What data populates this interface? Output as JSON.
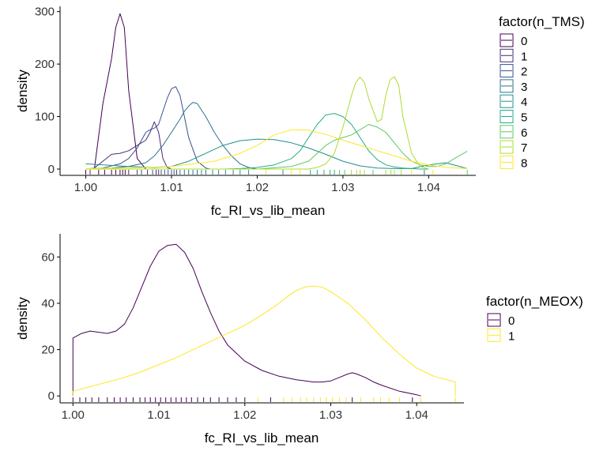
{
  "chart_data": [
    {
      "type": "density",
      "title": "",
      "xlabel": "fc_RI_vs_lib_mean",
      "ylabel": "density",
      "xlim": [
        0.997,
        1.0455
      ],
      "ylim": [
        -12,
        310
      ],
      "xticks": [
        "1.00",
        "1.01",
        "1.02",
        "1.03",
        "1.04"
      ],
      "xtick_values": [
        1.0,
        1.01,
        1.02,
        1.03,
        1.04
      ],
      "yticks": [
        "0",
        "100",
        "200",
        "300"
      ],
      "ytick_values": [
        0,
        100,
        200,
        300
      ],
      "grid": false,
      "legend": {
        "title": "factor(n_TMS)",
        "position": "right"
      },
      "rug": true,
      "series": [
        {
          "name": "0",
          "color": "#440154",
          "x": [
            1.0,
            1.001,
            1.002,
            1.003,
            1.0035,
            1.004,
            1.0045,
            1.005,
            1.006,
            1.007,
            1.0075,
            1.008,
            1.0085,
            1.009,
            1.0095,
            1.01,
            1.0105
          ],
          "y": [
            0,
            0,
            125,
            210,
            270,
            296,
            270,
            150,
            20,
            0,
            0,
            0,
            0,
            0,
            0,
            0,
            0
          ]
        },
        {
          "name": "1",
          "color": "#472D7B",
          "x": [
            1.0,
            1.001,
            1.002,
            1.003,
            1.004,
            1.005,
            1.006,
            1.007,
            1.0075,
            1.008,
            1.0085,
            1.009,
            1.0095,
            1.01,
            1.0105
          ],
          "y": [
            0,
            2,
            15,
            28,
            30,
            35,
            45,
            55,
            70,
            90,
            70,
            20,
            3,
            0,
            0
          ]
        },
        {
          "name": "2",
          "color": "#3B528B",
          "x": [
            1.0,
            1.002,
            1.004,
            1.005,
            1.006,
            1.007,
            1.0075,
            1.008,
            1.0085,
            1.009,
            1.0095,
            1.01,
            1.0105,
            1.011,
            1.0115,
            1.012,
            1.013,
            1.014,
            1.0145
          ],
          "y": [
            0,
            2,
            10,
            20,
            40,
            70,
            75,
            78,
            85,
            110,
            135,
            153,
            157,
            140,
            100,
            60,
            15,
            2,
            0
          ]
        },
        {
          "name": "3",
          "color": "#2C728E",
          "x": [
            1.0,
            1.003,
            1.005,
            1.007,
            1.008,
            1.009,
            1.01,
            1.011,
            1.0115,
            1.012,
            1.0125,
            1.013,
            1.014,
            1.015,
            1.016,
            1.017,
            1.018,
            1.019,
            1.02
          ],
          "y": [
            0,
            2,
            5,
            12,
            25,
            45,
            70,
            95,
            110,
            120,
            127,
            125,
            100,
            70,
            45,
            25,
            10,
            3,
            0
          ]
        },
        {
          "name": "4",
          "color": "#21908C",
          "x": [
            1.0,
            1.005,
            1.008,
            1.01,
            1.012,
            1.014,
            1.016,
            1.018,
            1.02,
            1.022,
            1.024,
            1.026,
            1.028,
            1.03,
            1.032,
            1.034,
            1.036,
            1.038,
            1.04,
            1.042,
            1.0445
          ],
          "y": [
            10,
            5,
            3,
            5,
            15,
            30,
            45,
            54,
            57,
            56,
            50,
            40,
            28,
            15,
            6,
            2,
            1,
            1,
            8,
            12,
            1
          ]
        },
        {
          "name": "5",
          "color": "#27AD81",
          "x": [
            1.0,
            1.01,
            1.016,
            1.018,
            1.02,
            1.022,
            1.024,
            1.025,
            1.026,
            1.027,
            1.028,
            1.029,
            1.03,
            1.031,
            1.032,
            1.033,
            1.034,
            1.035,
            1.036,
            1.037,
            1.038,
            1.039,
            1.04
          ],
          "y": [
            0,
            0,
            0,
            1,
            3,
            8,
            20,
            35,
            60,
            85,
            103,
            106,
            100,
            85,
            60,
            35,
            18,
            8,
            4,
            2,
            1,
            0,
            0
          ]
        },
        {
          "name": "6",
          "color": "#5DC863",
          "x": [
            1.0,
            1.02,
            1.024,
            1.026,
            1.027,
            1.028,
            1.029,
            1.03,
            1.031,
            1.032,
            1.033,
            1.034,
            1.035,
            1.036,
            1.037,
            1.038,
            1.039,
            1.04,
            1.041,
            1.042,
            1.043,
            1.0445
          ],
          "y": [
            0,
            0,
            5,
            15,
            30,
            45,
            55,
            60,
            65,
            75,
            85,
            80,
            70,
            50,
            30,
            15,
            8,
            5,
            5,
            10,
            20,
            34
          ]
        },
        {
          "name": "7",
          "color": "#AADC32",
          "x": [
            1.0,
            1.026,
            1.027,
            1.028,
            1.029,
            1.03,
            1.031,
            1.0315,
            1.032,
            1.0325,
            1.033,
            1.034,
            1.0345,
            1.035,
            1.0355,
            1.036,
            1.0365,
            1.037,
            1.038,
            1.039,
            1.04
          ],
          "y": [
            0,
            0,
            3,
            10,
            30,
            80,
            140,
            165,
            175,
            165,
            135,
            90,
            95,
            140,
            170,
            176,
            160,
            100,
            30,
            5,
            0
          ]
        },
        {
          "name": "8",
          "color": "#FDE725",
          "x": [
            1.0,
            1.005,
            1.01,
            1.015,
            1.018,
            1.02,
            1.022,
            1.024,
            1.026,
            1.028,
            1.03,
            1.032,
            1.034,
            1.036,
            1.038,
            1.04,
            1.042,
            1.0445
          ],
          "y": [
            1,
            2,
            5,
            15,
            30,
            45,
            65,
            75,
            74,
            66,
            55,
            45,
            35,
            25,
            15,
            8,
            3,
            1
          ]
        }
      ],
      "rug_values": [
        {
          "x": 1.0,
          "series": "0"
        },
        {
          "x": 1.0005,
          "series": "1"
        },
        {
          "x": 1.0015,
          "series": "0"
        },
        {
          "x": 1.0022,
          "series": "0"
        },
        {
          "x": 1.003,
          "series": "0"
        },
        {
          "x": 1.0035,
          "series": "0"
        },
        {
          "x": 1.004,
          "series": "0"
        },
        {
          "x": 1.0043,
          "series": "0"
        },
        {
          "x": 1.0046,
          "series": "0"
        },
        {
          "x": 1.005,
          "series": "1"
        },
        {
          "x": 1.006,
          "series": "1"
        },
        {
          "x": 1.0065,
          "series": "2"
        },
        {
          "x": 1.0072,
          "series": "1"
        },
        {
          "x": 1.0078,
          "series": "2"
        },
        {
          "x": 1.0082,
          "series": "1"
        },
        {
          "x": 1.0085,
          "series": "1"
        },
        {
          "x": 1.0088,
          "series": "2"
        },
        {
          "x": 1.0092,
          "series": "2"
        },
        {
          "x": 1.0096,
          "series": "2"
        },
        {
          "x": 1.01,
          "series": "2"
        },
        {
          "x": 1.0103,
          "series": "2"
        },
        {
          "x": 1.0106,
          "series": "2"
        },
        {
          "x": 1.011,
          "series": "3"
        },
        {
          "x": 1.0115,
          "series": "3"
        },
        {
          "x": 1.012,
          "series": "3"
        },
        {
          "x": 1.0125,
          "series": "3"
        },
        {
          "x": 1.013,
          "series": "3"
        },
        {
          "x": 1.0135,
          "series": "4"
        },
        {
          "x": 1.014,
          "series": "3"
        },
        {
          "x": 1.0148,
          "series": "4"
        },
        {
          "x": 1.0155,
          "series": "4"
        },
        {
          "x": 1.0163,
          "series": "4"
        },
        {
          "x": 1.0172,
          "series": "4"
        },
        {
          "x": 1.018,
          "series": "4"
        },
        {
          "x": 1.019,
          "series": "4"
        },
        {
          "x": 1.021,
          "series": "8"
        },
        {
          "x": 1.023,
          "series": "4"
        },
        {
          "x": 1.024,
          "series": "8"
        },
        {
          "x": 1.025,
          "series": "8"
        },
        {
          "x": 1.0262,
          "series": "5"
        },
        {
          "x": 1.027,
          "series": "5"
        },
        {
          "x": 1.0278,
          "series": "5"
        },
        {
          "x": 1.0285,
          "series": "5"
        },
        {
          "x": 1.029,
          "series": "5"
        },
        {
          "x": 1.0296,
          "series": "6"
        },
        {
          "x": 1.0302,
          "series": "6"
        },
        {
          "x": 1.031,
          "series": "7"
        },
        {
          "x": 1.0316,
          "series": "7"
        },
        {
          "x": 1.032,
          "series": "7"
        },
        {
          "x": 1.0325,
          "series": "7"
        },
        {
          "x": 1.0335,
          "series": "6"
        },
        {
          "x": 1.035,
          "series": "7"
        },
        {
          "x": 1.0356,
          "series": "7"
        },
        {
          "x": 1.036,
          "series": "7"
        },
        {
          "x": 1.0368,
          "series": "7"
        },
        {
          "x": 1.038,
          "series": "8"
        },
        {
          "x": 1.0395,
          "series": "4"
        },
        {
          "x": 1.0405,
          "series": "8"
        },
        {
          "x": 1.0445,
          "series": "6"
        }
      ]
    },
    {
      "type": "density",
      "title": "",
      "xlabel": "fc_RI_vs_lib_mean",
      "ylabel": "density",
      "xlim": [
        0.9985,
        1.0455
      ],
      "ylim": [
        -3,
        70
      ],
      "xticks": [
        "1.00",
        "1.01",
        "1.02",
        "1.03",
        "1.04"
      ],
      "xtick_values": [
        1.0,
        1.01,
        1.02,
        1.03,
        1.04
      ],
      "yticks": [
        "0",
        "20",
        "40",
        "60"
      ],
      "ytick_values": [
        0,
        20,
        40,
        60
      ],
      "grid": false,
      "legend": {
        "title": "factor(n_MEOX)",
        "position": "right"
      },
      "rug": true,
      "series": [
        {
          "name": "0",
          "color": "#440154",
          "x": [
            1.0,
            1.0,
            1.001,
            1.002,
            1.003,
            1.004,
            1.005,
            1.006,
            1.007,
            1.008,
            1.009,
            1.01,
            1.011,
            1.012,
            1.013,
            1.014,
            1.015,
            1.016,
            1.017,
            1.018,
            1.02,
            1.022,
            1.024,
            1.026,
            1.028,
            1.029,
            1.03,
            1.031,
            1.032,
            1.0325,
            1.033,
            1.034,
            1.035,
            1.036,
            1.038,
            1.04,
            1.0405
          ],
          "y": [
            0,
            25,
            27,
            28,
            27.5,
            27,
            28,
            31,
            38,
            47,
            56,
            62.5,
            65,
            65.5,
            62,
            55,
            45,
            36,
            28,
            22,
            15,
            11,
            8.5,
            7,
            6,
            6,
            6.5,
            8,
            9.5,
            10,
            9.5,
            8,
            6,
            4.5,
            2,
            0.5,
            0
          ]
        },
        {
          "name": "1",
          "color": "#FDE725",
          "x": [
            1.0,
            1.0,
            1.002,
            1.004,
            1.006,
            1.008,
            1.01,
            1.012,
            1.014,
            1.016,
            1.018,
            1.02,
            1.022,
            1.024,
            1.025,
            1.026,
            1.027,
            1.028,
            1.029,
            1.03,
            1.032,
            1.034,
            1.036,
            1.038,
            1.04,
            1.042,
            1.0445,
            1.0445
          ],
          "y": [
            0,
            2,
            4,
            6,
            8,
            10.5,
            13.5,
            16.5,
            20,
            23.5,
            27,
            30.5,
            35,
            40,
            43,
            45.5,
            47,
            47.5,
            47,
            45,
            40,
            33,
            25,
            18,
            12,
            8.5,
            6,
            0
          ]
        }
      ],
      "rug_values": [
        {
          "x": 1.0,
          "series": "0"
        },
        {
          "x": 1.0008,
          "series": "0"
        },
        {
          "x": 1.0015,
          "series": "0"
        },
        {
          "x": 1.0022,
          "series": "0"
        },
        {
          "x": 1.003,
          "series": "0"
        },
        {
          "x": 1.004,
          "series": "0"
        },
        {
          "x": 1.0048,
          "series": "0"
        },
        {
          "x": 1.0055,
          "series": "0"
        },
        {
          "x": 1.0062,
          "series": "0"
        },
        {
          "x": 1.007,
          "series": "0"
        },
        {
          "x": 1.0078,
          "series": "0"
        },
        {
          "x": 1.0084,
          "series": "0"
        },
        {
          "x": 1.009,
          "series": "0"
        },
        {
          "x": 1.0096,
          "series": "0"
        },
        {
          "x": 1.0102,
          "series": "0"
        },
        {
          "x": 1.0108,
          "series": "0"
        },
        {
          "x": 1.0114,
          "series": "0"
        },
        {
          "x": 1.012,
          "series": "0"
        },
        {
          "x": 1.0126,
          "series": "0"
        },
        {
          "x": 1.0132,
          "series": "0"
        },
        {
          "x": 1.0138,
          "series": "0"
        },
        {
          "x": 1.0145,
          "series": "0"
        },
        {
          "x": 1.0152,
          "series": "0"
        },
        {
          "x": 1.016,
          "series": "0"
        },
        {
          "x": 1.017,
          "series": "0"
        },
        {
          "x": 1.018,
          "series": "0"
        },
        {
          "x": 1.019,
          "series": "0"
        },
        {
          "x": 1.02,
          "series": "0"
        },
        {
          "x": 1.0215,
          "series": "1"
        },
        {
          "x": 1.023,
          "series": "0"
        },
        {
          "x": 1.0245,
          "series": "1"
        },
        {
          "x": 1.0255,
          "series": "1"
        },
        {
          "x": 1.0265,
          "series": "1"
        },
        {
          "x": 1.0272,
          "series": "1"
        },
        {
          "x": 1.028,
          "series": "1"
        },
        {
          "x": 1.0288,
          "series": "1"
        },
        {
          "x": 1.0295,
          "series": "1"
        },
        {
          "x": 1.0302,
          "series": "1"
        },
        {
          "x": 1.031,
          "series": "1"
        },
        {
          "x": 1.0318,
          "series": "1"
        },
        {
          "x": 1.0325,
          "series": "0"
        },
        {
          "x": 1.0335,
          "series": "1"
        },
        {
          "x": 1.035,
          "series": "1"
        },
        {
          "x": 1.0358,
          "series": "1"
        },
        {
          "x": 1.0368,
          "series": "1"
        },
        {
          "x": 1.038,
          "series": "1"
        },
        {
          "x": 1.0395,
          "series": "0"
        },
        {
          "x": 1.0405,
          "series": "1"
        },
        {
          "x": 1.0445,
          "series": "1"
        }
      ]
    }
  ]
}
